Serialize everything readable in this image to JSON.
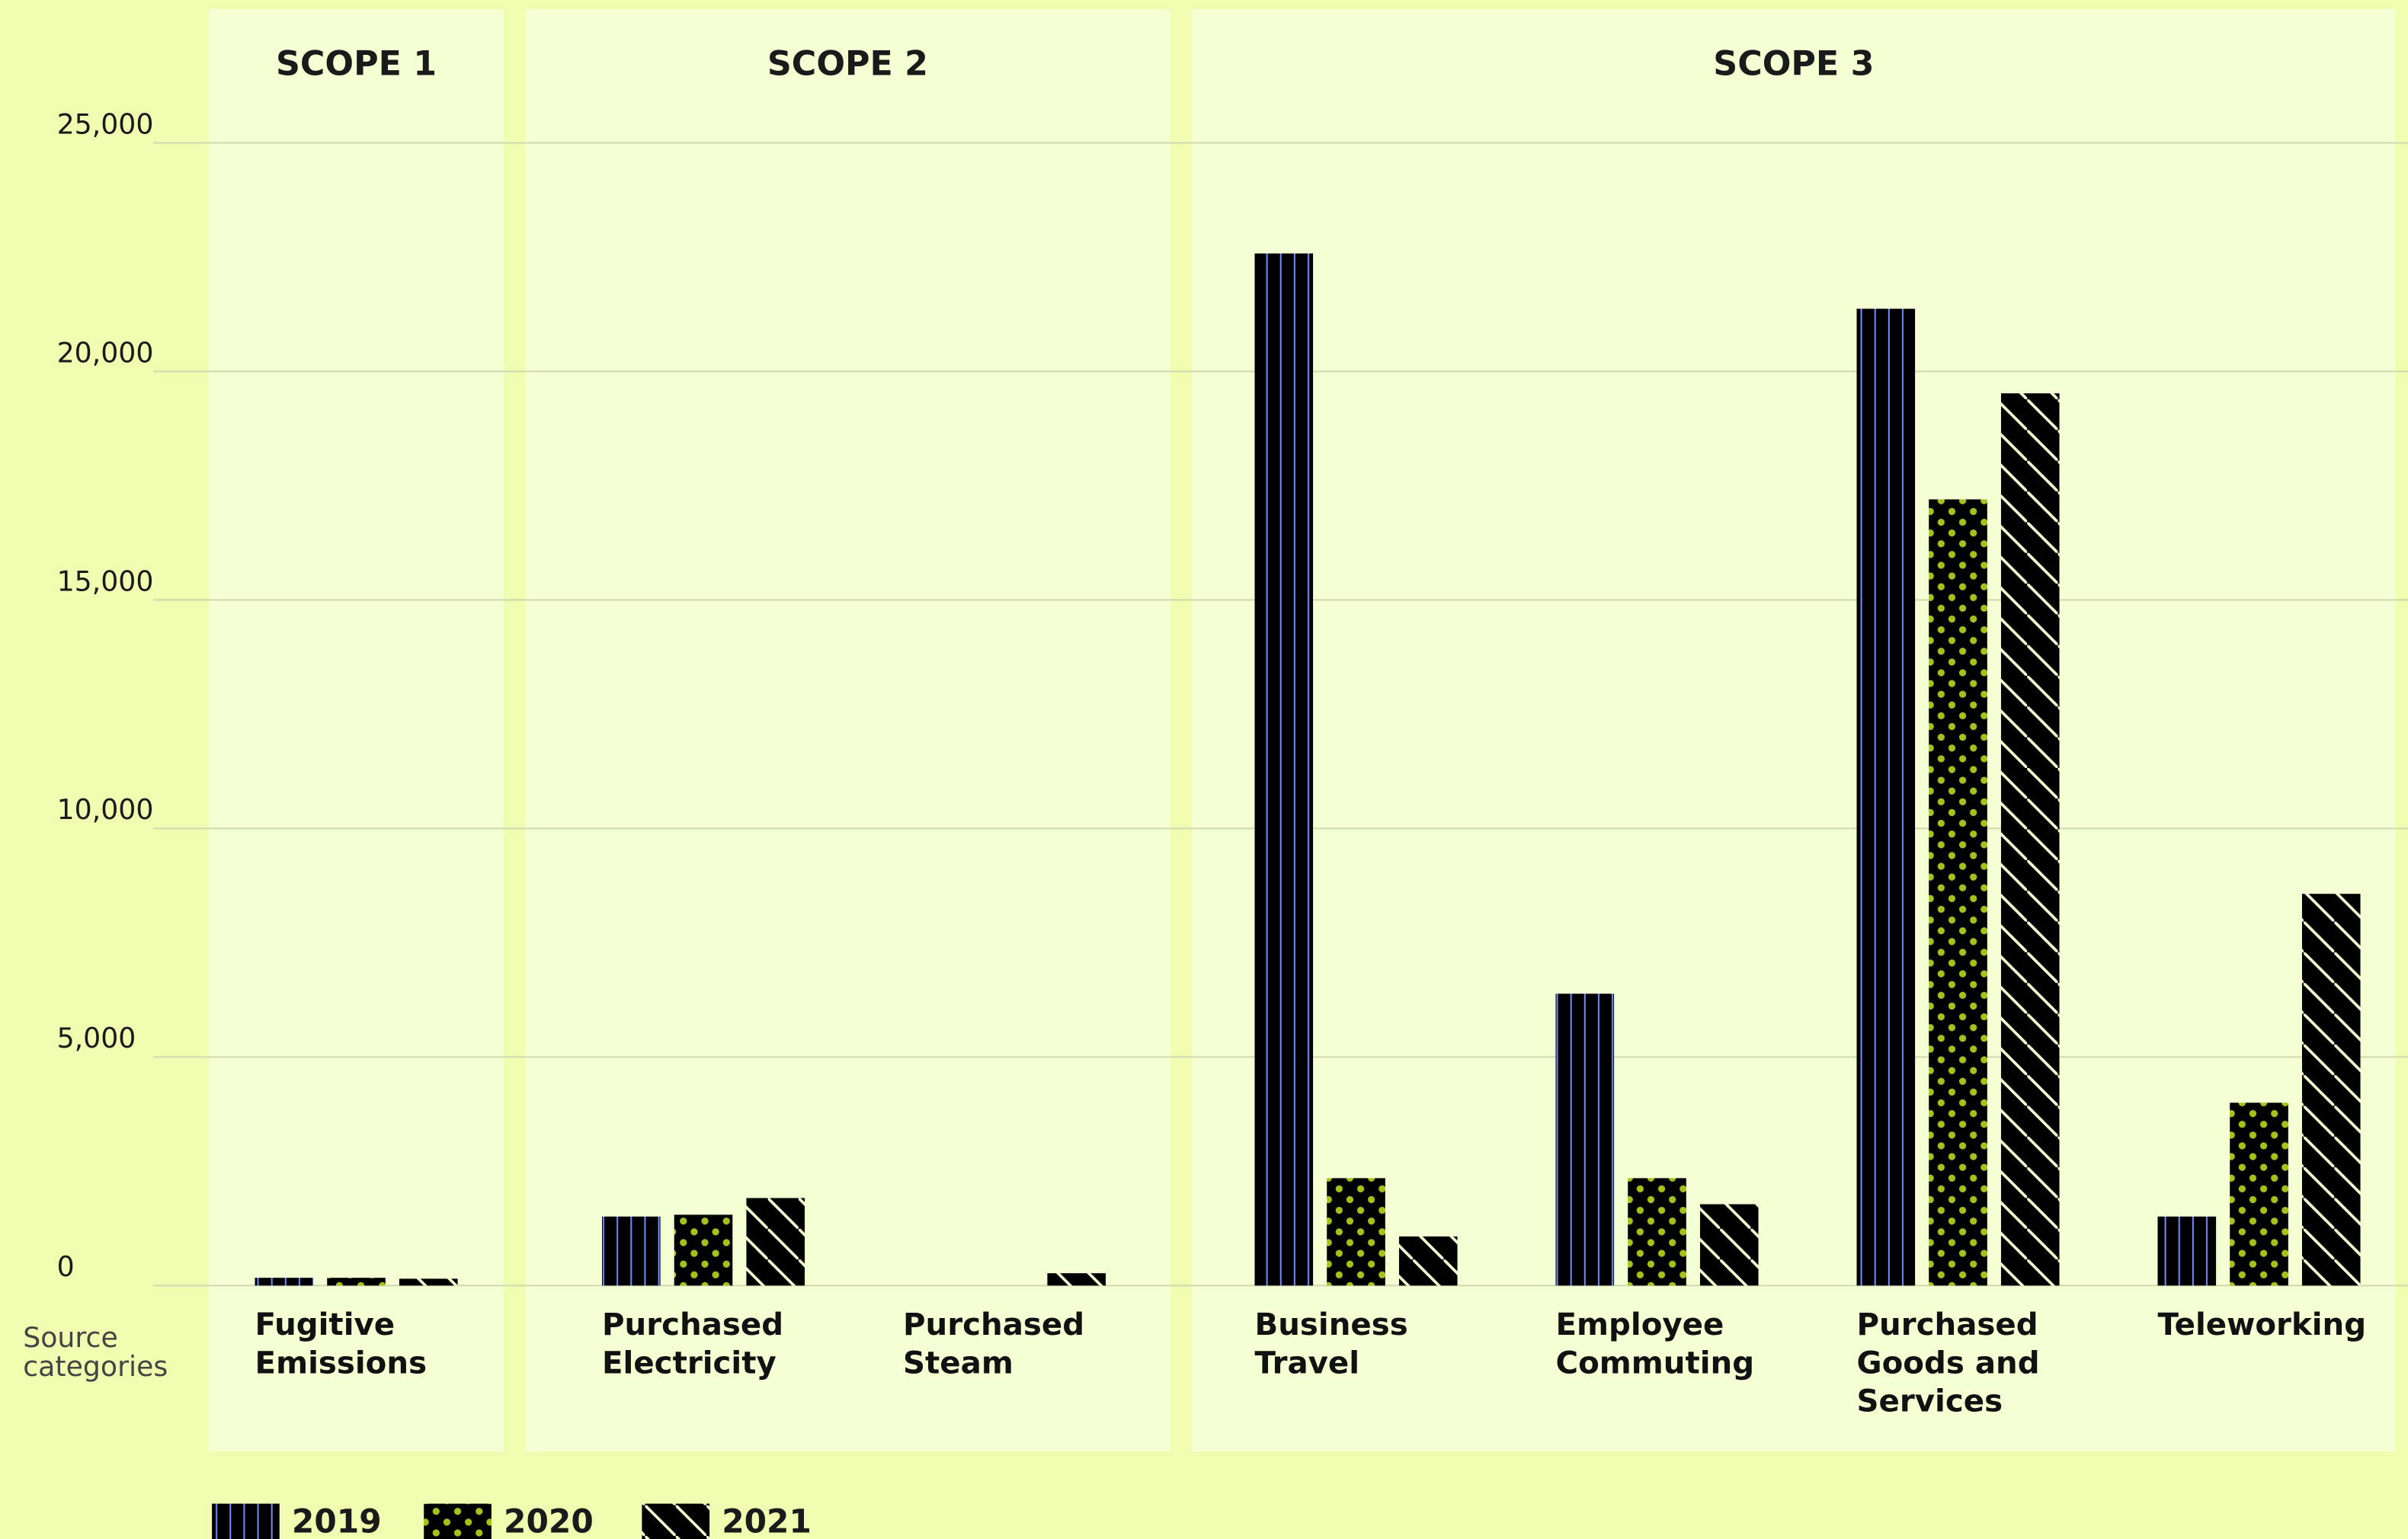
{
  "chart_data": {
    "type": "bar",
    "x_label": "Source categories",
    "groups": [
      {
        "name": "SCOPE 1",
        "categories": [
          "Fugitive Emissions"
        ]
      },
      {
        "name": "SCOPE 2",
        "categories": [
          "Purchased Electricity",
          "Purchased Steam"
        ]
      },
      {
        "name": "SCOPE 3",
        "categories": [
          "Business Travel",
          "Employee Commuting",
          "Purchased Goods and Services",
          "Teleworking"
        ]
      }
    ],
    "series": [
      {
        "name": "2019",
        "color": "#0a2fc4",
        "pattern": "vertical-stripes",
        "values": [
          170,
          1510,
          0,
          22580,
          6385,
          21370,
          1510
        ]
      },
      {
        "name": "2020",
        "color": "#cde81a",
        "pattern": "dots",
        "values": [
          170,
          1550,
          0,
          2350,
          2350,
          17200,
          4000
        ]
      },
      {
        "name": "2021",
        "color": "#b8cc40",
        "pattern": "diagonal-stripes",
        "values": [
          150,
          1915,
          270,
          1075,
          1780,
          19520,
          8570
        ]
      }
    ],
    "ylim": [
      0,
      25000
    ],
    "yticks": [
      0,
      {
        "value": 5000,
        "label": "5,000"
      },
      {
        "value": 10000,
        "label": "10,000"
      },
      {
        "value": 15000,
        "label": "15,000"
      },
      {
        "value": 20000,
        "label": "20,000"
      },
      {
        "value": 25000,
        "label": "25,000"
      }
    ],
    "grid": true,
    "legend": "bottom-left"
  }
}
